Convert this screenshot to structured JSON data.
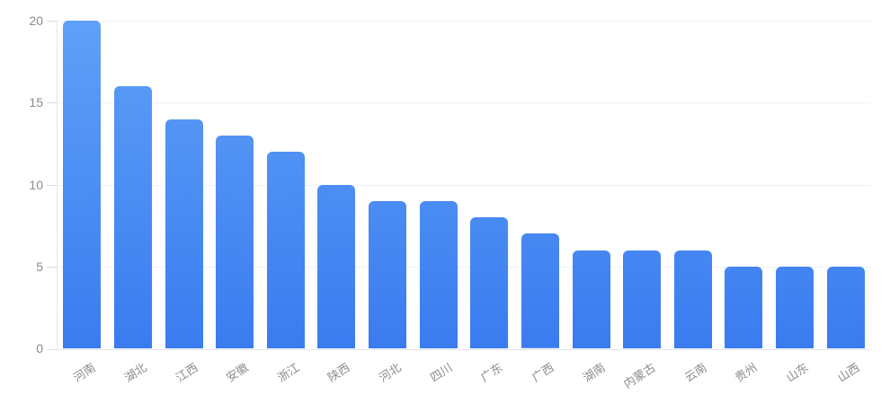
{
  "chart_data": {
    "type": "bar",
    "title": "",
    "xlabel": "",
    "ylabel": "",
    "categories": [
      "河南",
      "湖北",
      "江西",
      "安徽",
      "浙江",
      "陕西",
      "河北",
      "四川",
      "广东",
      "广西",
      "湖南",
      "内蒙古",
      "云南",
      "贵州",
      "山东",
      "山西"
    ],
    "values": [
      20,
      16,
      14,
      13,
      12,
      10,
      9,
      9,
      8,
      7,
      6,
      6,
      6,
      5,
      5,
      5
    ],
    "ylim": [
      0,
      20
    ],
    "yticks": [
      0,
      5,
      10,
      15,
      20
    ],
    "grid": true,
    "legend": "none",
    "colors": {
      "bar_gradient_top": "#5fa0f7",
      "bar_gradient_bottom": "#3a7cf0",
      "gridline": "#edf1f7",
      "axis_line": "#e0e3e8",
      "tick_label": "#8b8b8b"
    }
  }
}
